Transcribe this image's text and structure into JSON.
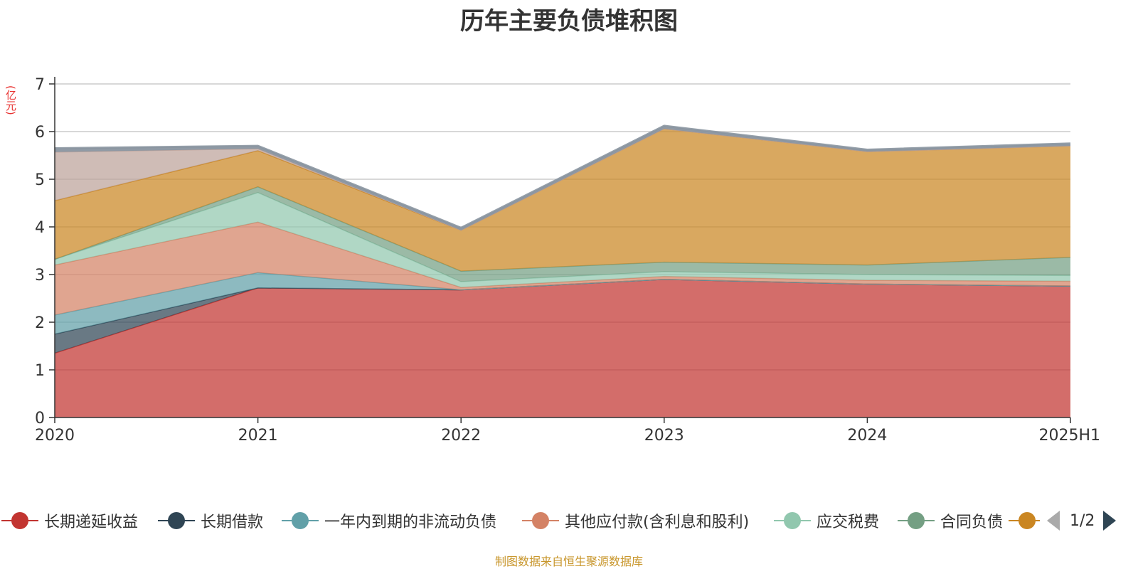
{
  "title": "历年主要负债堆积图",
  "unit": "(亿元)",
  "footer": "制图数据来自恒生聚源数据库",
  "pager": {
    "text": "1/2"
  },
  "colors": {
    "长期递延收益": "#c23531",
    "长期借款": "#2f4554",
    "一年内到期的非流动负债": "#61a0a8",
    "其他应付款(含利息和股利)": "#d48265",
    "应交税费": "#91c7ae",
    "合同负债": "#749f83",
    "应付账款": "#ca8622",
    "其他": "#bda29a",
    "top": "#8a95a0"
  },
  "legend": [
    {
      "name": "长期递延收益",
      "color": "#c23531"
    },
    {
      "name": "长期借款",
      "color": "#2f4554"
    },
    {
      "name": "一年内到期的非流动负债",
      "color": "#61a0a8"
    },
    {
      "name": "其他应付款(含利息和股利)",
      "color": "#d48265"
    },
    {
      "name": "应交税费",
      "color": "#91c7ae"
    },
    {
      "name": "合同负债",
      "color": "#749f83"
    },
    {
      "name": "",
      "color": "#ca8622"
    }
  ],
  "chart_data": {
    "type": "area",
    "stacked": true,
    "title": "历年主要负债堆积图",
    "ylabel": "(亿元)",
    "ylim": [
      0,
      7
    ],
    "yticks": [
      "0",
      "1",
      "2",
      "3",
      "4",
      "5",
      "6",
      "7"
    ],
    "categories": [
      "2020",
      "2021",
      "2022",
      "2023",
      "2024",
      "2025H1"
    ],
    "grid": true,
    "legend_position": "bottom",
    "series": [
      {
        "name": "长期递延收益",
        "values": [
          1.35,
          2.72,
          2.68,
          2.9,
          2.8,
          2.76
        ]
      },
      {
        "name": "长期借款",
        "values": [
          0.4,
          0.0,
          0.0,
          0.0,
          0.0,
          0.0
        ]
      },
      {
        "name": "一年内到期的非流动负债",
        "values": [
          0.4,
          0.32,
          0.0,
          0.0,
          0.0,
          0.0
        ]
      },
      {
        "name": "其他应付款(含利息和股利)",
        "values": [
          1.05,
          1.06,
          0.05,
          0.06,
          0.08,
          0.1
        ]
      },
      {
        "name": "应交税费",
        "values": [
          0.12,
          0.62,
          0.12,
          0.1,
          0.12,
          0.12
        ]
      },
      {
        "name": "合同负债",
        "values": [
          0.0,
          0.12,
          0.22,
          0.2,
          0.2,
          0.38
        ]
      },
      {
        "values": [
          1.23,
          0.76,
          0.86,
          2.8,
          2.38,
          2.34
        ]
      },
      {
        "values": [
          1.02,
          0.04,
          0.0,
          0.0,
          0.0,
          0.0
        ]
      },
      {
        "values": [
          0.08,
          0.06,
          0.05,
          0.06,
          0.04,
          0.05
        ]
      }
    ]
  }
}
